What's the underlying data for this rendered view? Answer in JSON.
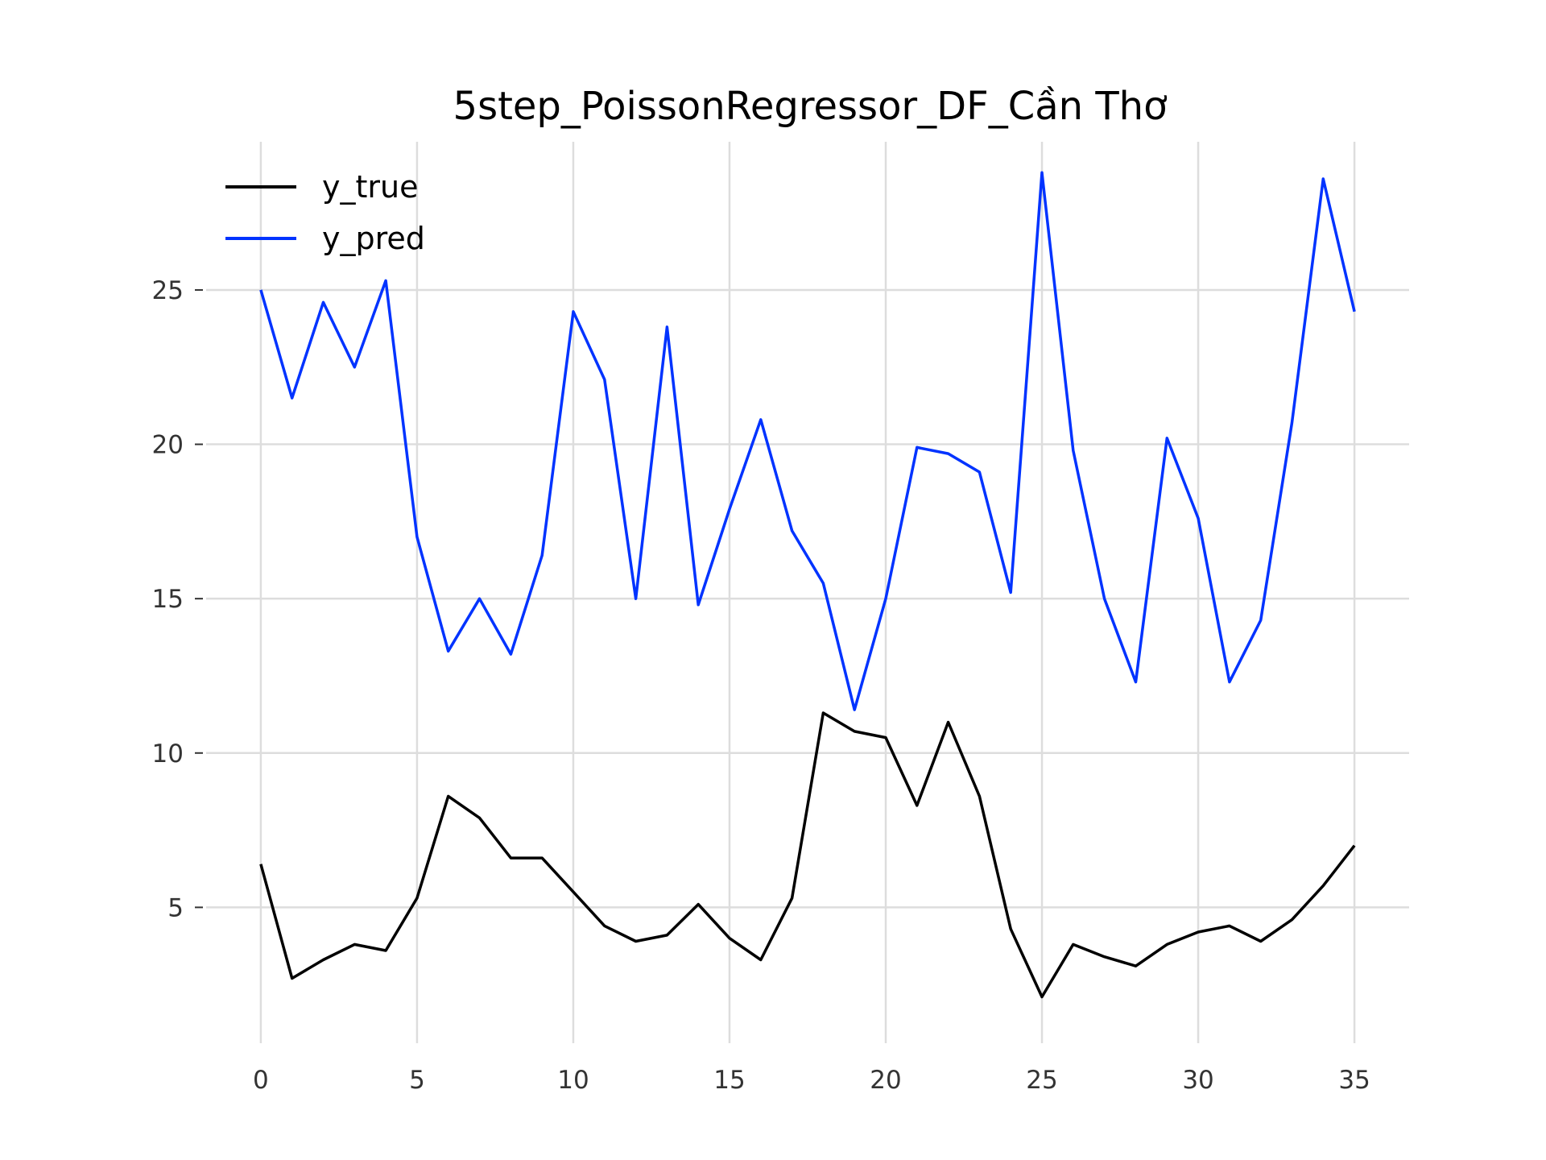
{
  "chart_data": {
    "type": "line",
    "title": "5step_PoissonRegressor_DF_Cần Thơ",
    "xlabel": "",
    "ylabel": "",
    "x": [
      0,
      1,
      2,
      3,
      4,
      5,
      6,
      7,
      8,
      9,
      10,
      11,
      12,
      13,
      14,
      15,
      16,
      17,
      18,
      19,
      20,
      21,
      22,
      23,
      24,
      25,
      26,
      27,
      28,
      29,
      30,
      31,
      32,
      33,
      34,
      35
    ],
    "xticks": [
      0,
      5,
      10,
      15,
      20,
      25,
      30,
      35
    ],
    "xtick_labels": [
      "0",
      "5",
      "10",
      "15",
      "20",
      "25",
      "30",
      "35"
    ],
    "yticks": [
      5,
      10,
      15,
      20,
      25
    ],
    "ytick_labels": [
      "5",
      "10",
      "15",
      "20",
      "25"
    ],
    "xlim": [
      -1.75,
      36.75
    ],
    "ylim": [
      0.6,
      29.8
    ],
    "grid": true,
    "legend_position": "top-left",
    "series": [
      {
        "name": "y_true",
        "color": "#000000",
        "values": [
          6.4,
          2.7,
          3.3,
          3.8,
          3.6,
          5.3,
          8.6,
          7.9,
          6.6,
          6.6,
          5.5,
          4.4,
          3.9,
          4.1,
          5.1,
          4.0,
          3.3,
          5.3,
          11.3,
          10.7,
          10.5,
          8.3,
          11.0,
          8.6,
          4.3,
          2.1,
          3.8,
          3.4,
          3.1,
          3.8,
          4.2,
          4.4,
          3.9,
          4.6,
          5.7,
          7.0
        ]
      },
      {
        "name": "y_pred",
        "color": "#0033ff",
        "values": [
          25.0,
          21.5,
          24.6,
          22.5,
          25.3,
          17.0,
          13.3,
          15.0,
          13.2,
          16.4,
          24.3,
          22.1,
          15.0,
          23.8,
          14.8,
          17.9,
          20.8,
          17.2,
          15.5,
          11.4,
          15.0,
          19.9,
          19.7,
          19.1,
          15.2,
          28.8,
          19.8,
          15.0,
          12.3,
          20.2,
          17.6,
          12.3,
          14.3,
          20.7,
          28.6,
          24.3
        ]
      }
    ]
  }
}
